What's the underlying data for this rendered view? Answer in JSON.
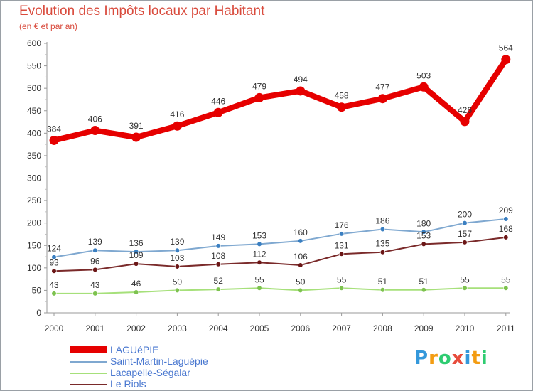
{
  "title": "Evolution des Impôts locaux par Habitant",
  "subtitle": "(en € et par an)",
  "logo": "Proxiti",
  "chart_data": {
    "type": "line",
    "title": "Evolution des Impôts locaux par Habitant",
    "subtitle": "(en € et par an)",
    "xlabel": "",
    "ylabel": "",
    "categories": [
      "2000",
      "2001",
      "2002",
      "2003",
      "2004",
      "2005",
      "2006",
      "2007",
      "2008",
      "2009",
      "2010",
      "2011"
    ],
    "ylim": [
      0,
      600
    ],
    "yticks": [
      "0",
      "50",
      "100",
      "150",
      "200",
      "250",
      "300",
      "350",
      "400",
      "450",
      "500",
      "550",
      "600"
    ],
    "grid": false,
    "legend_position": "bottom-left",
    "series": [
      {
        "name": "LAGUéPIE",
        "values": [
          384,
          406,
          391,
          416,
          446,
          479,
          494,
          458,
          477,
          503,
          426,
          564
        ],
        "color": "#e60000",
        "marker": "#e60000",
        "thick": true
      },
      {
        "name": "Saint-Martin-Laguépie",
        "values": [
          124,
          139,
          136,
          139,
          149,
          153,
          160,
          176,
          186,
          180,
          200,
          209
        ],
        "color": "#7fa8d0",
        "marker": "#3a7fc1",
        "thick": false
      },
      {
        "name": "Lacapelle-Ségalar",
        "values": [
          43,
          43,
          46,
          50,
          52,
          55,
          50,
          55,
          51,
          51,
          55,
          55
        ],
        "color": "#a6e07a",
        "marker": "#7dc24f",
        "thick": false
      },
      {
        "name": "Le Riols",
        "values": [
          93,
          96,
          109,
          103,
          108,
          112,
          106,
          131,
          135,
          153,
          157,
          168
        ],
        "color": "#7a2a2a",
        "marker": "#6b1616",
        "thick": false
      }
    ],
    "labels": [
      [
        "384",
        "406",
        "391",
        "416",
        "446",
        "479",
        "494",
        "458",
        "477",
        "503",
        "426",
        "564"
      ],
      [
        "124",
        "139",
        "136",
        "139",
        "149",
        "153",
        "160",
        "176",
        "186",
        "180",
        "200",
        "209"
      ],
      [
        "43",
        "43",
        "46",
        "50",
        "52",
        "55",
        "50",
        "55",
        "51",
        "51",
        "55",
        "55"
      ],
      [
        "93",
        "96",
        "109",
        "103",
        "108",
        "112",
        "106",
        "131",
        "135",
        "153",
        "157",
        "168"
      ]
    ]
  }
}
